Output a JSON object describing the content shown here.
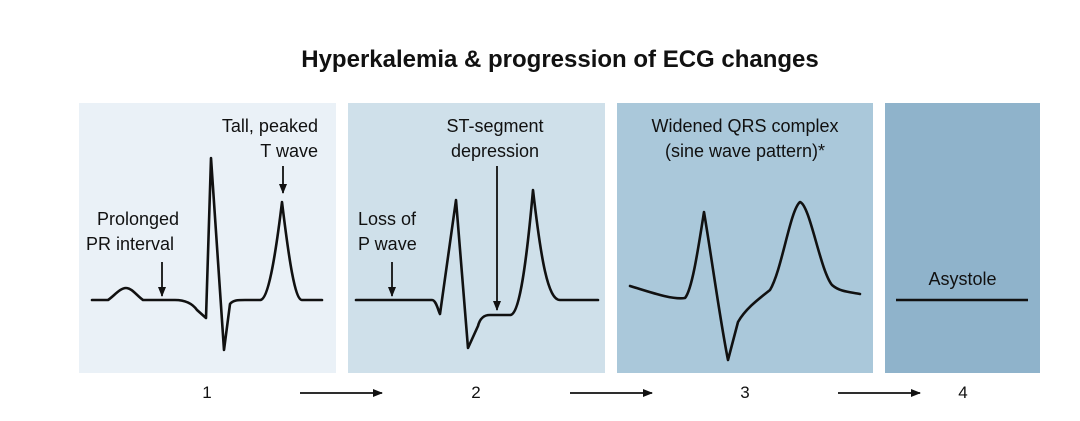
{
  "title": "Hyperkalemia & progression of ECG changes",
  "panels": [
    {
      "step": "1",
      "labels": [
        "Tall, peaked",
        "T wave",
        "Prolonged",
        "PR interval"
      ],
      "color": "#eaf1f7"
    },
    {
      "step": "2",
      "labels": [
        "ST-segment",
        "depression",
        "Loss of",
        "P wave"
      ],
      "color": "#cfe0ea"
    },
    {
      "step": "3",
      "labels": [
        "Widened QRS complex",
        "(sine wave pattern)*"
      ],
      "color": "#aac8da"
    },
    {
      "step": "4",
      "labels": [
        "Asystole"
      ],
      "color": "#8fb3cb"
    }
  ]
}
